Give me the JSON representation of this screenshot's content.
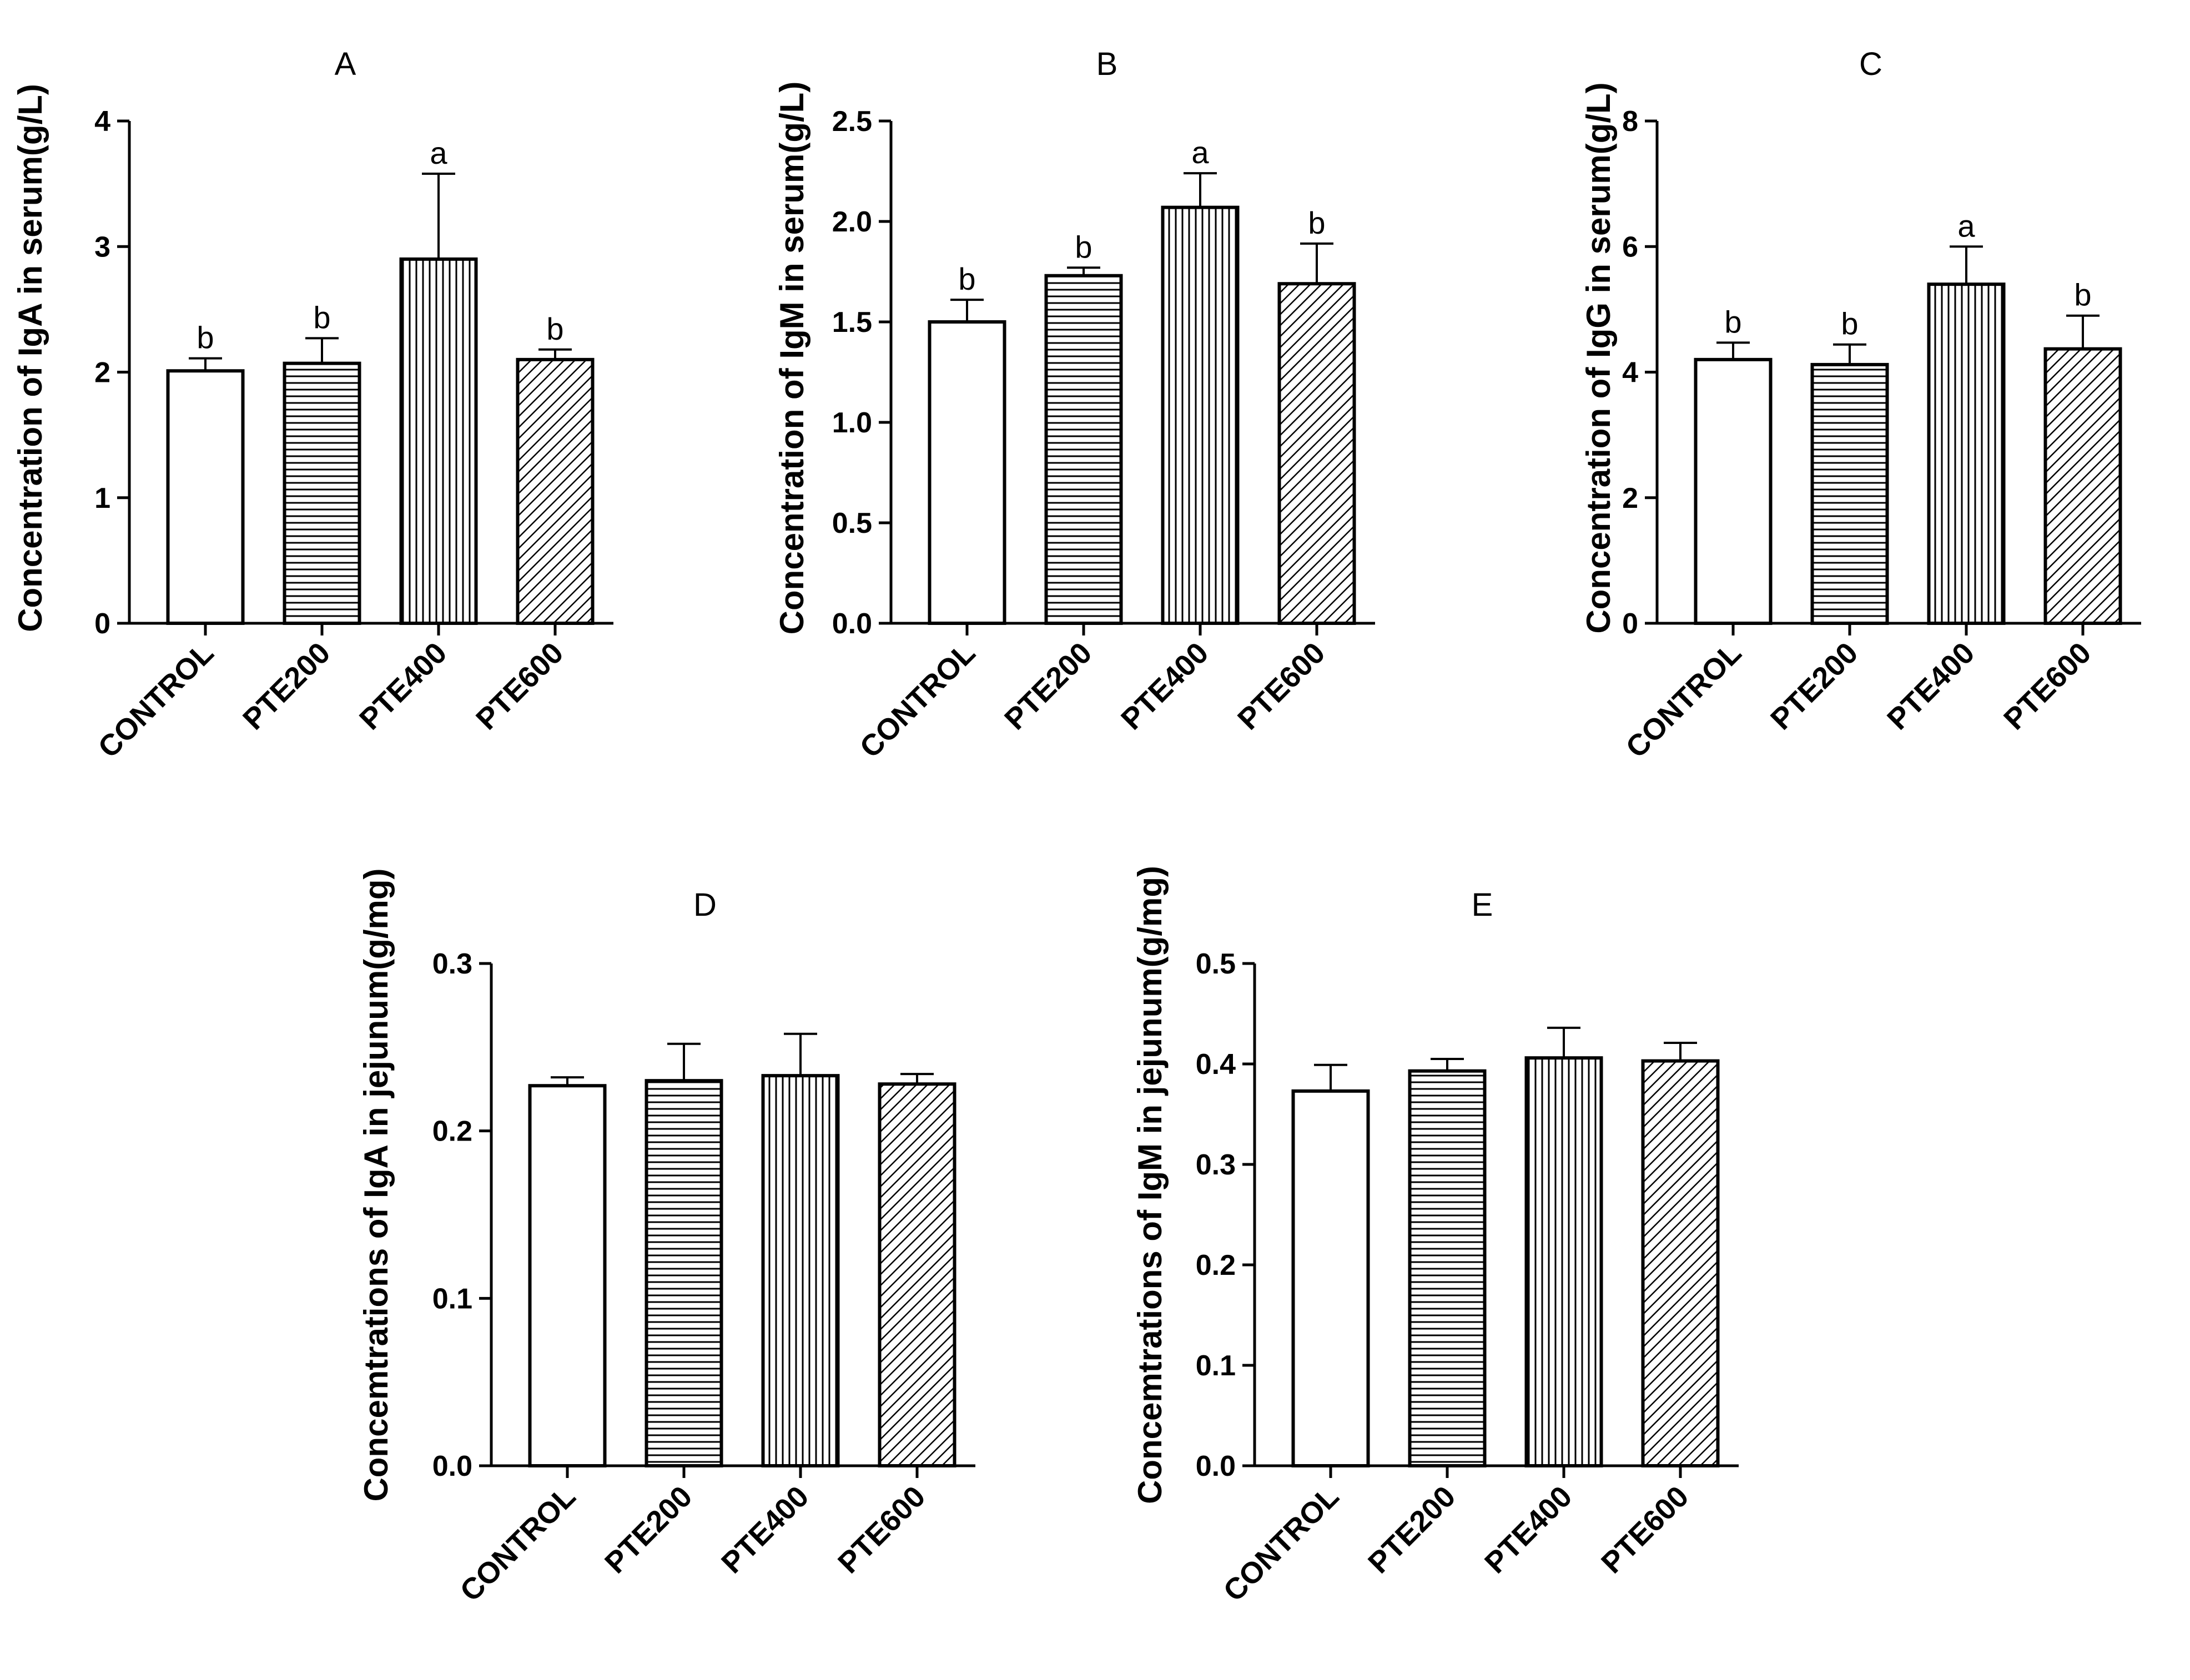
{
  "patterns": [
    "none",
    "hlines",
    "vlines",
    "diag"
  ],
  "chart_data": [
    {
      "panel": "A",
      "type": "bar",
      "title": "A",
      "ylabel": "Concentration of IgA in serum(g/L)",
      "categories": [
        "CONTROL",
        "PTE200",
        "PTE400",
        "PTE600"
      ],
      "values": [
        2.01,
        2.07,
        2.9,
        2.1
      ],
      "errors": [
        0.1,
        0.2,
        0.68,
        0.08
      ],
      "significance": [
        "b",
        "b",
        "a",
        "b"
      ],
      "ylim": [
        0,
        4
      ],
      "yticks": [
        0,
        1,
        2,
        3,
        4
      ],
      "ytick_labels": [
        "0",
        "1",
        "2",
        "3",
        "4"
      ]
    },
    {
      "panel": "B",
      "type": "bar",
      "title": "B",
      "ylabel": "Concentration of IgM in serum(g/L)",
      "categories": [
        "CONTROL",
        "PTE200",
        "PTE400",
        "PTE600"
      ],
      "values": [
        1.5,
        1.73,
        2.07,
        1.69
      ],
      "errors": [
        0.11,
        0.04,
        0.17,
        0.2
      ],
      "significance": [
        "b",
        "b",
        "a",
        "b"
      ],
      "ylim": [
        0,
        2.5
      ],
      "yticks": [
        0,
        0.5,
        1.0,
        1.5,
        2.0,
        2.5
      ],
      "ytick_labels": [
        "0.0",
        "0.5",
        "1.0",
        "1.5",
        "2.0",
        "2.5"
      ]
    },
    {
      "panel": "C",
      "type": "bar",
      "title": "C",
      "ylabel": "Concentration of IgG in serum(g/L)",
      "categories": [
        "CONTROL",
        "PTE200",
        "PTE400",
        "PTE600"
      ],
      "values": [
        4.2,
        4.12,
        5.4,
        4.37
      ],
      "errors": [
        0.27,
        0.32,
        0.6,
        0.53
      ],
      "significance": [
        "b",
        "b",
        "a",
        "b"
      ],
      "ylim": [
        0,
        8
      ],
      "yticks": [
        0,
        2,
        4,
        6,
        8
      ],
      "ytick_labels": [
        "0",
        "2",
        "4",
        "6",
        "8"
      ]
    },
    {
      "panel": "D",
      "type": "bar",
      "title": "D",
      "ylabel": "Concemtrations of IgA in jejunum(g/mg)",
      "categories": [
        "CONTROL",
        "PTE200",
        "PTE400",
        "PTE600"
      ],
      "values": [
        0.227,
        0.23,
        0.233,
        0.228
      ],
      "errors": [
        0.005,
        0.022,
        0.025,
        0.006
      ],
      "significance": [
        "",
        "",
        "",
        ""
      ],
      "ylim": [
        0,
        0.3
      ],
      "yticks": [
        0,
        0.1,
        0.2,
        0.3
      ],
      "ytick_labels": [
        "0.0",
        "0.1",
        "0.2",
        "0.3"
      ]
    },
    {
      "panel": "E",
      "type": "bar",
      "title": "E",
      "ylabel": "Concemtrations of IgM in jejunum(g/mg)",
      "categories": [
        "CONTROL",
        "PTE200",
        "PTE400",
        "PTE600"
      ],
      "values": [
        0.373,
        0.393,
        0.406,
        0.403
      ],
      "errors": [
        0.026,
        0.012,
        0.03,
        0.018
      ],
      "significance": [
        "",
        "",
        "",
        ""
      ],
      "ylim": [
        0,
        0.5
      ],
      "yticks": [
        0,
        0.1,
        0.2,
        0.3,
        0.4,
        0.5
      ],
      "ytick_labels": [
        "0.0",
        "0.1",
        "0.2",
        "0.3",
        "0.4",
        "0.5"
      ]
    }
  ]
}
